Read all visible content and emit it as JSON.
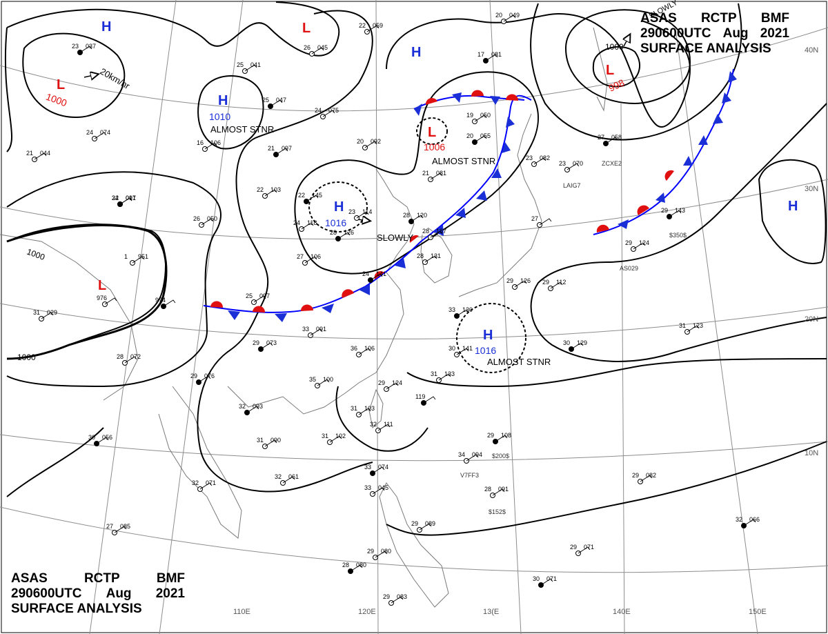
{
  "header": {
    "agency_line": [
      "ASAS",
      "RCTP",
      "BMF"
    ],
    "time_line": [
      "290600UTC",
      "Aug",
      "2021"
    ],
    "title": "SURFACE ANALYSIS"
  },
  "graticule": {
    "lon_labels": [
      "110E",
      "120E",
      "13(E",
      "140E",
      "150E"
    ],
    "lat_labels": [
      "40N",
      "30N",
      "20N",
      "10N"
    ]
  },
  "pressure_centers": [
    {
      "type": "H",
      "value": "1010",
      "note": "ALMOST STNR"
    },
    {
      "type": "H",
      "value": "1016",
      "note": ""
    },
    {
      "type": "H",
      "value": "1016",
      "note": "ALMOST STNR"
    },
    {
      "type": "L",
      "value": "1000",
      "note": ""
    },
    {
      "type": "L",
      "value": "1006",
      "note": "ALMOST STNR"
    },
    {
      "type": "L",
      "value": "998",
      "note": ""
    },
    {
      "type": "H",
      "value": "",
      "note": ""
    },
    {
      "type": "H",
      "value": "",
      "note": ""
    },
    {
      "type": "H",
      "value": "",
      "note": ""
    },
    {
      "type": "L",
      "value": "",
      "note": ""
    },
    {
      "type": "L",
      "value": "",
      "note": ""
    }
  ],
  "isobar_labels": [
    "1000",
    "1000",
    "1000"
  ],
  "motion_labels": [
    "20km/hr",
    "SLOWLY",
    "SLOWLY"
  ],
  "stations": [
    {
      "t": "23",
      "p": "037"
    },
    {
      "t": "24",
      "p": "074"
    },
    {
      "t": "21",
      "p": "044"
    },
    {
      "t": "24",
      "p": "091"
    },
    {
      "t": "16",
      "p": "106"
    },
    {
      "t": "25",
      "p": "041"
    },
    {
      "t": "25",
      "p": "047"
    },
    {
      "t": "26",
      "p": "045"
    },
    {
      "t": "24",
      "p": "075"
    },
    {
      "t": "21",
      "p": "097"
    },
    {
      "t": "22",
      "p": "059"
    },
    {
      "t": "20",
      "p": "092"
    },
    {
      "t": "17",
      "p": "081"
    },
    {
      "t": "20",
      "p": "049"
    },
    {
      "t": "19",
      "p": "050"
    },
    {
      "t": "20",
      "p": "055"
    },
    {
      "t": "21",
      "p": "081"
    },
    {
      "t": "22",
      "p": "103"
    },
    {
      "t": "22",
      "p": "145"
    },
    {
      "t": "23",
      "p": "114"
    },
    {
      "t": "24",
      "p": "118"
    },
    {
      "t": "28",
      "p": "126"
    },
    {
      "t": "27",
      "p": "106"
    },
    {
      "t": "26",
      "p": "050"
    },
    {
      "t": "32",
      "p": "017"
    },
    {
      "t": "1",
      "p": "951"
    },
    {
      "t": "976",
      "p": ""
    },
    {
      "t": "974",
      "p": ""
    },
    {
      "t": "31",
      "p": "029"
    },
    {
      "t": "25",
      "p": "097"
    },
    {
      "t": "24",
      "p": "141"
    },
    {
      "t": "28",
      "p": "131"
    },
    {
      "t": "28",
      "p": "187"
    },
    {
      "t": "28",
      "p": "120"
    },
    {
      "t": "23",
      "p": "082"
    },
    {
      "t": "23",
      "p": "070"
    },
    {
      "t": "27",
      "p": "058"
    },
    {
      "t": "27",
      "p": ""
    },
    {
      "t": "29",
      "p": "112"
    },
    {
      "t": "29",
      "p": "143"
    },
    {
      "t": "29",
      "p": "124"
    },
    {
      "t": "33",
      "p": "091"
    },
    {
      "t": "29",
      "p": "073"
    },
    {
      "t": "36",
      "p": "106"
    },
    {
      "t": "28",
      "p": "072"
    },
    {
      "t": "29",
      "p": "076"
    },
    {
      "t": "35",
      "p": "100"
    },
    {
      "t": "29",
      "p": "124"
    },
    {
      "t": "119",
      "p": ""
    },
    {
      "t": "31",
      "p": "103"
    },
    {
      "t": "32",
      "p": "111"
    },
    {
      "t": "32",
      "p": "093"
    },
    {
      "t": "31",
      "p": "090"
    },
    {
      "t": "31",
      "p": "102"
    },
    {
      "t": "30",
      "p": "056"
    },
    {
      "t": "32",
      "p": "071"
    },
    {
      "t": "32",
      "p": "061"
    },
    {
      "t": "33",
      "p": "074"
    },
    {
      "t": "33",
      "p": "045"
    },
    {
      "t": "34",
      "p": "094"
    },
    {
      "t": "29",
      "p": "108"
    },
    {
      "t": "28",
      "p": "091"
    },
    {
      "t": "29",
      "p": "082"
    },
    {
      "t": "32",
      "p": "066"
    },
    {
      "t": "27",
      "p": "085"
    },
    {
      "t": "29",
      "p": "080"
    },
    {
      "t": "28",
      "p": "080"
    },
    {
      "t": "29",
      "p": "089"
    },
    {
      "t": "29",
      "p": "071"
    },
    {
      "t": "30",
      "p": "071"
    },
    {
      "t": "29",
      "p": "083"
    },
    {
      "t": "31",
      "p": "123"
    },
    {
      "t": "30",
      "p": "129"
    },
    {
      "t": "30",
      "p": "141"
    },
    {
      "t": "31",
      "p": "133"
    },
    {
      "t": "33",
      "p": "130"
    },
    {
      "t": "29",
      "p": "126"
    }
  ],
  "station_ids": [
    "ZCXE2",
    "LAIG7",
    "AS029",
    "V7FF3"
  ],
  "station_extras": [
    "$350$",
    "$200$",
    "$152$"
  ],
  "colors": {
    "high": "#1a2fd6",
    "low": "#e01010",
    "line": "#000000",
    "coast": "#7a7a7a",
    "grid": "#8c8c8c"
  }
}
